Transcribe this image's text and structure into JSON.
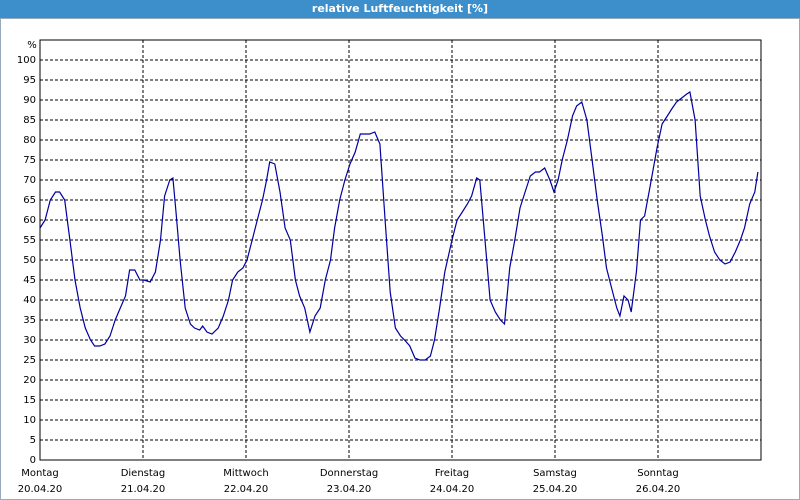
{
  "chart_data": {
    "type": "line",
    "title": "relative Luftfeuchtigkeit [%]",
    "y_label": "%",
    "xlim": [
      0,
      7
    ],
    "ylim": [
      0,
      105
    ],
    "xticks": [
      {
        "value": 0,
        "label": "Montag",
        "date": "20.04.20"
      },
      {
        "value": 1,
        "label": "Dienstag",
        "date": "21.04.20"
      },
      {
        "value": 2,
        "label": "Mittwoch",
        "date": "22.04.20"
      },
      {
        "value": 3,
        "label": "Donnerstag",
        "date": "23.04.20"
      },
      {
        "value": 4,
        "label": "Freitag",
        "date": "24.04.20"
      },
      {
        "value": 5,
        "label": "Samstag",
        "date": "25.04.20"
      },
      {
        "value": 6,
        "label": "Sonntag",
        "date": "26.04.20"
      }
    ],
    "yticks": [
      0,
      5,
      10,
      15,
      20,
      25,
      30,
      35,
      40,
      45,
      50,
      55,
      60,
      65,
      70,
      75,
      80,
      85,
      90,
      95,
      100
    ],
    "grid": true,
    "x": [
      0,
      0.05,
      0.1,
      0.15,
      0.19,
      0.24,
      0.29,
      0.34,
      0.39,
      0.44,
      0.49,
      0.53,
      0.58,
      0.63,
      0.68,
      0.73,
      0.78,
      0.83,
      0.87,
      0.92,
      0.97,
      1.01,
      1.07,
      1.12,
      1.17,
      1.21,
      1.26,
      1.29,
      1.32,
      1.36,
      1.41,
      1.46,
      1.5,
      1.55,
      1.58,
      1.62,
      1.67,
      1.73,
      1.78,
      1.83,
      1.87,
      1.92,
      1.97,
      2.01,
      2.06,
      2.11,
      2.16,
      2.2,
      2.23,
      2.28,
      2.33,
      2.38,
      2.43,
      2.48,
      2.52,
      2.57,
      2.62,
      2.67,
      2.72,
      2.77,
      2.82,
      2.86,
      2.91,
      2.96,
      3.01,
      3.06,
      3.11,
      3.16,
      3.2,
      3.25,
      3.3,
      3.35,
      3.4,
      3.45,
      3.5,
      3.54,
      3.59,
      3.64,
      3.69,
      3.74,
      3.79,
      3.83,
      3.88,
      3.93,
      4.0,
      4.05,
      4.1,
      4.15,
      4.19,
      4.24,
      4.27,
      4.32,
      4.37,
      4.42,
      4.47,
      4.51,
      4.56,
      4.61,
      4.66,
      4.71,
      4.76,
      4.81,
      4.85,
      4.9,
      4.95,
      4.99,
      5.03,
      5.07,
      5.12,
      5.17,
      5.21,
      5.26,
      5.31,
      5.36,
      5.41,
      5.46,
      5.5,
      5.55,
      5.6,
      5.63,
      5.67,
      5.71,
      5.74,
      5.79,
      5.83,
      5.87,
      5.92,
      5.99,
      6.04,
      6.09,
      6.14,
      6.18,
      6.23,
      6.28,
      6.31,
      6.36,
      6.41,
      6.46,
      6.5,
      6.55,
      6.6,
      6.65,
      6.7,
      6.75,
      6.8,
      6.84,
      6.89,
      6.94,
      6.97
    ],
    "series": [
      {
        "color": "#0000a0",
        "values": [
          58,
          60,
          65,
          67,
          67,
          65,
          55,
          45,
          38,
          33,
          30,
          28.5,
          28.5,
          29,
          31,
          35,
          38,
          41,
          47.5,
          47.5,
          45,
          45,
          44.5,
          47,
          55,
          66,
          70,
          70.5,
          62,
          50,
          38,
          34,
          33,
          32.5,
          33.5,
          32,
          31.5,
          33,
          36,
          40,
          45,
          47,
          48,
          50,
          55,
          60,
          65,
          70,
          74.5,
          74,
          67,
          58,
          55,
          45,
          41,
          38,
          32,
          36,
          38,
          45,
          50,
          58,
          65,
          70,
          74,
          77,
          81.5,
          81.5,
          81.5,
          82,
          79,
          60,
          42,
          33,
          31,
          30,
          28.5,
          25.5,
          25,
          25,
          26,
          30,
          38,
          47,
          55,
          60,
          62,
          64,
          66,
          70.5,
          70,
          55,
          40,
          37,
          35,
          34,
          48,
          55,
          63,
          67,
          71,
          72,
          72,
          73,
          70,
          67,
          70,
          75,
          80,
          86,
          88.5,
          89.5,
          85,
          75,
          65,
          56,
          48,
          43,
          38,
          36,
          41,
          40,
          37,
          47,
          60,
          61,
          68,
          78,
          84,
          86,
          88,
          89.5,
          90.5,
          91.5,
          92,
          85,
          66,
          60,
          56,
          52,
          50,
          49,
          49.5,
          52,
          55,
          58,
          64,
          67,
          72
        ]
      }
    ]
  }
}
